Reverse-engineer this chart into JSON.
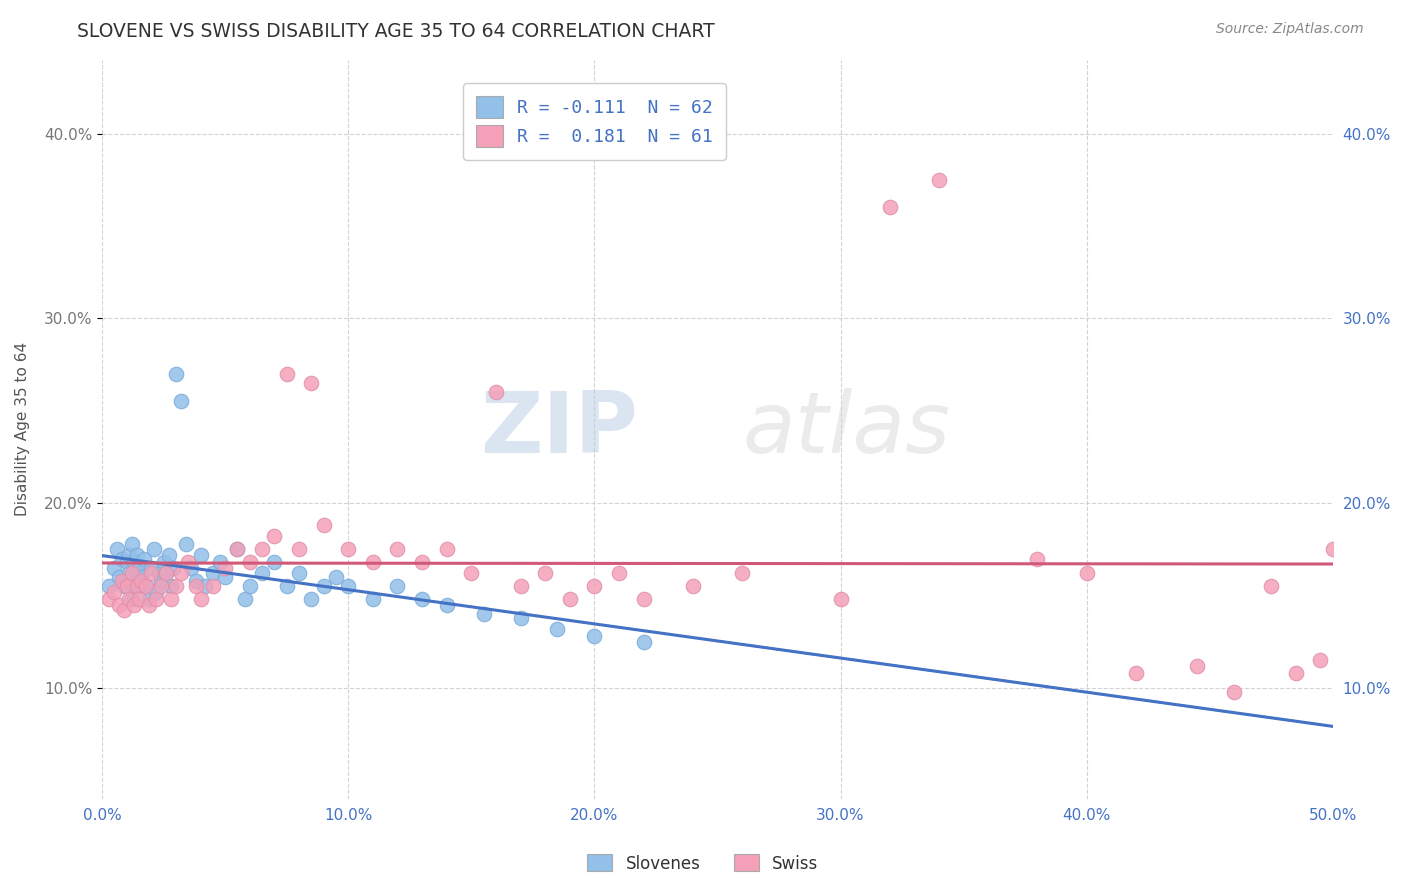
{
  "title": "SLOVENE VS SWISS DISABILITY AGE 35 TO 64 CORRELATION CHART",
  "source": "Source: ZipAtlas.com",
  "ylabel": "Disability Age 35 to 64",
  "xlim": [
    0.0,
    0.5
  ],
  "ylim": [
    0.04,
    0.44
  ],
  "x_ticks": [
    0.0,
    0.1,
    0.2,
    0.3,
    0.4,
    0.5
  ],
  "x_tick_labels": [
    "0.0%",
    "10.0%",
    "20.0%",
    "30.0%",
    "40.0%",
    "50.0%"
  ],
  "y_ticks": [
    0.1,
    0.2,
    0.3,
    0.4
  ],
  "y_tick_labels": [
    "10.0%",
    "20.0%",
    "30.0%",
    "40.0%"
  ],
  "legend_label1": "R = -0.111  N = 62",
  "legend_label2": "R =  0.181  N = 61",
  "series1_color": "#92C0E8",
  "series2_color": "#F4A0B8",
  "line1_color": "#4472C4",
  "line2_color": "#D05878",
  "background_color": "#FFFFFF",
  "grid_color": "#C8C8C8",
  "watermark_zip": "ZIP",
  "watermark_atlas": "atlas",
  "title_color": "#555555",
  "tick_color": "#4472C4",
  "slovene_x": [
    0.003,
    0.005,
    0.006,
    0.007,
    0.008,
    0.009,
    0.01,
    0.01,
    0.011,
    0.011,
    0.012,
    0.012,
    0.013,
    0.013,
    0.014,
    0.014,
    0.015,
    0.015,
    0.016,
    0.017,
    0.018,
    0.019,
    0.02,
    0.021,
    0.022,
    0.023,
    0.024,
    0.025,
    0.026,
    0.027,
    0.028,
    0.029,
    0.03,
    0.032,
    0.034,
    0.036,
    0.038,
    0.04,
    0.042,
    0.045,
    0.048,
    0.05,
    0.055,
    0.058,
    0.06,
    0.065,
    0.07,
    0.075,
    0.08,
    0.085,
    0.09,
    0.095,
    0.1,
    0.11,
    0.12,
    0.13,
    0.14,
    0.155,
    0.17,
    0.185,
    0.2,
    0.22
  ],
  "slovene_y": [
    0.155,
    0.165,
    0.175,
    0.16,
    0.17,
    0.155,
    0.168,
    0.158,
    0.162,
    0.172,
    0.148,
    0.178,
    0.155,
    0.168,
    0.162,
    0.172,
    0.155,
    0.165,
    0.16,
    0.17,
    0.155,
    0.148,
    0.165,
    0.175,
    0.152,
    0.162,
    0.158,
    0.168,
    0.162,
    0.172,
    0.155,
    0.165,
    0.27,
    0.255,
    0.178,
    0.165,
    0.158,
    0.172,
    0.155,
    0.162,
    0.168,
    0.16,
    0.175,
    0.148,
    0.155,
    0.162,
    0.168,
    0.155,
    0.162,
    0.148,
    0.155,
    0.16,
    0.155,
    0.148,
    0.155,
    0.148,
    0.145,
    0.14,
    0.138,
    0.132,
    0.128,
    0.125
  ],
  "swiss_x": [
    0.003,
    0.005,
    0.007,
    0.008,
    0.009,
    0.01,
    0.011,
    0.012,
    0.013,
    0.014,
    0.015,
    0.016,
    0.018,
    0.019,
    0.02,
    0.022,
    0.024,
    0.026,
    0.028,
    0.03,
    0.032,
    0.035,
    0.038,
    0.04,
    0.045,
    0.05,
    0.055,
    0.06,
    0.065,
    0.07,
    0.075,
    0.08,
    0.085,
    0.09,
    0.1,
    0.11,
    0.12,
    0.13,
    0.14,
    0.15,
    0.16,
    0.17,
    0.18,
    0.19,
    0.2,
    0.21,
    0.22,
    0.24,
    0.26,
    0.3,
    0.32,
    0.34,
    0.38,
    0.4,
    0.42,
    0.445,
    0.46,
    0.475,
    0.485,
    0.495,
    0.5
  ],
  "swiss_y": [
    0.148,
    0.152,
    0.145,
    0.158,
    0.142,
    0.155,
    0.148,
    0.162,
    0.145,
    0.155,
    0.148,
    0.158,
    0.155,
    0.145,
    0.162,
    0.148,
    0.155,
    0.162,
    0.148,
    0.155,
    0.162,
    0.168,
    0.155,
    0.148,
    0.155,
    0.165,
    0.175,
    0.168,
    0.175,
    0.182,
    0.27,
    0.175,
    0.265,
    0.188,
    0.175,
    0.168,
    0.175,
    0.168,
    0.175,
    0.162,
    0.26,
    0.155,
    0.162,
    0.148,
    0.155,
    0.162,
    0.148,
    0.155,
    0.162,
    0.148,
    0.36,
    0.375,
    0.17,
    0.162,
    0.108,
    0.112,
    0.098,
    0.155,
    0.108,
    0.115,
    0.175
  ]
}
